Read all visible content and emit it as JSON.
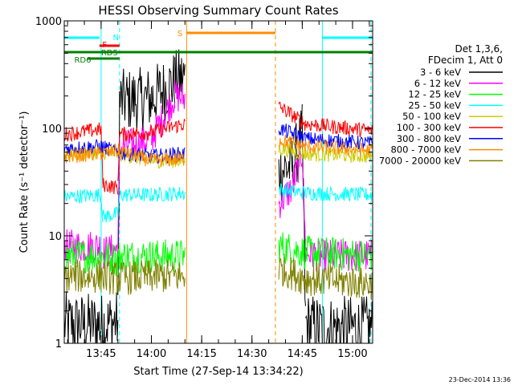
{
  "chart_data": {
    "type": "line",
    "title": "HESSI Observing Summary Count Rates",
    "xlabel": "Start Time (27-Sep-14 13:34:22)",
    "ylabel": "Count Rate (s⁻¹ detector⁻¹)",
    "ylim": [
      1,
      1000
    ],
    "yscale": "log",
    "xlim_minutes": [
      0,
      92
    ],
    "x_ticks": [
      {
        "label": "13:45",
        "minute": 11
      },
      {
        "label": "14:00",
        "minute": 26
      },
      {
        "label": "14:15",
        "minute": 41
      },
      {
        "label": "14:30",
        "minute": 56
      },
      {
        "label": "14:45",
        "minute": 71
      },
      {
        "label": "15:00",
        "minute": 86
      }
    ],
    "y_tick_labels": [
      "1",
      "10",
      "100",
      "1000"
    ],
    "grid": false,
    "legend_position": "right",
    "legend_header": [
      "Det 1,3,6,",
      "FDecim 1, Att 0"
    ],
    "footer_date": "23-Dec-2014 13:36",
    "series": [
      {
        "name": "3 - 6 keV",
        "color": "#000000",
        "x": [
          0,
          11,
          11.5,
          16,
          16.5,
          26,
          33,
          36,
          36.5,
          63,
          64,
          68,
          71,
          72,
          77,
          92
        ],
        "y": [
          1.5,
          1.5,
          1.5,
          1.6,
          180,
          190,
          270,
          300,
          null,
          null,
          40,
          45,
          85,
          1.5,
          1.4,
          1.4
        ]
      },
      {
        "name": "6 - 12 keV",
        "color": "#ff00ff",
        "x": [
          0,
          11,
          11.5,
          16,
          16.5,
          26,
          33,
          36,
          36.5,
          63,
          64,
          68,
          71,
          72,
          77,
          92
        ],
        "y": [
          8,
          8,
          7,
          7.5,
          65,
          80,
          200,
          190,
          null,
          null,
          20,
          28,
          60,
          7,
          6.5,
          6.5
        ]
      },
      {
        "name": "12 - 25 keV",
        "color": "#00ff00",
        "x": [
          0,
          11,
          16,
          16.5,
          26,
          36,
          36.5,
          63,
          64,
          72,
          92
        ],
        "y": [
          6.5,
          6.5,
          6,
          6.5,
          6.5,
          6.5,
          null,
          null,
          8,
          7,
          6.5
        ]
      },
      {
        "name": "25 - 50 keV",
        "color": "#00ffff",
        "x": [
          0,
          11,
          11.5,
          16,
          16.5,
          26,
          36,
          36.5,
          63,
          64,
          72,
          92
        ],
        "y": [
          23,
          24,
          15,
          16,
          24,
          24,
          25,
          null,
          null,
          27,
          25,
          24
        ]
      },
      {
        "name": "50 - 100 keV",
        "color": "#cccc00",
        "x": [
          0,
          11,
          16,
          26,
          36,
          36.5,
          63,
          64,
          72,
          92
        ],
        "y": [
          57,
          60,
          58,
          50,
          50,
          null,
          null,
          65,
          58,
          55
        ]
      },
      {
        "name": "100 - 300 keV",
        "color": "#ff0000",
        "x": [
          0,
          11,
          11.5,
          16,
          16.5,
          26,
          36,
          36.5,
          63,
          64,
          72,
          92
        ],
        "y": [
          88,
          98,
          30,
          28,
          88,
          92,
          110,
          null,
          null,
          160,
          110,
          95
        ]
      },
      {
        "name": "300 - 800 keV",
        "color": "#0000ff",
        "x": [
          0,
          11,
          16,
          26,
          36,
          36.5,
          63,
          64,
          72,
          92
        ],
        "y": [
          65,
          68,
          60,
          55,
          58,
          null,
          null,
          100,
          80,
          72
        ]
      },
      {
        "name": "800 - 7000 keV",
        "color": "#ff8c00",
        "x": [
          0,
          11,
          16,
          26,
          36,
          36.5,
          63,
          64,
          72,
          92
        ],
        "y": [
          55,
          58,
          62,
          50,
          52,
          null,
          null,
          78,
          68,
          62
        ]
      },
      {
        "name": "7000 - 20000 keV",
        "color": "#808000",
        "x": [
          0,
          11,
          16,
          26,
          36,
          36.5,
          63,
          64,
          72,
          92
        ],
        "y": [
          4.2,
          4.2,
          4.0,
          4.2,
          4.2,
          null,
          null,
          5.0,
          4.0,
          3.6
        ]
      }
    ],
    "annotations": [
      {
        "text": "N",
        "color": "#00ffff"
      },
      {
        "text": "F",
        "color": "#ff0000"
      },
      {
        "text": "RD5",
        "color": "#008000"
      },
      {
        "text": "RD6",
        "color": "#008000"
      },
      {
        "text": "S",
        "color": "#ff8c00"
      }
    ],
    "flags": {
      "N": {
        "color": "#00ffff",
        "intervals": [
          [
            0,
            10.5
          ],
          [
            77,
            92
          ]
        ]
      },
      "F": {
        "color": "#ff0000",
        "intervals": [
          [
            10.5,
            16.5
          ]
        ]
      },
      "RD5": {
        "color": "#008000",
        "intervals": [
          [
            0,
            92
          ]
        ]
      },
      "RD6": {
        "color": "#008000",
        "intervals": [
          [
            7,
            16.5
          ]
        ]
      },
      "S": {
        "color": "#ff8c00",
        "intervals": [
          [
            36.5,
            63
          ]
        ]
      }
    },
    "event_markers": [
      {
        "minute": 11,
        "color": "#00ffff",
        "style": "solid"
      },
      {
        "minute": 16.5,
        "color": "#00ffff",
        "style": "dashed"
      },
      {
        "minute": 36.5,
        "color": "#ff8c00",
        "style": "solid"
      },
      {
        "minute": 63,
        "color": "#ff8c00",
        "style": "dashed"
      },
      {
        "minute": 77,
        "color": "#00ffff",
        "style": "solid"
      },
      {
        "minute": 91.5,
        "color": "#00ffff",
        "style": "dashed"
      }
    ]
  }
}
